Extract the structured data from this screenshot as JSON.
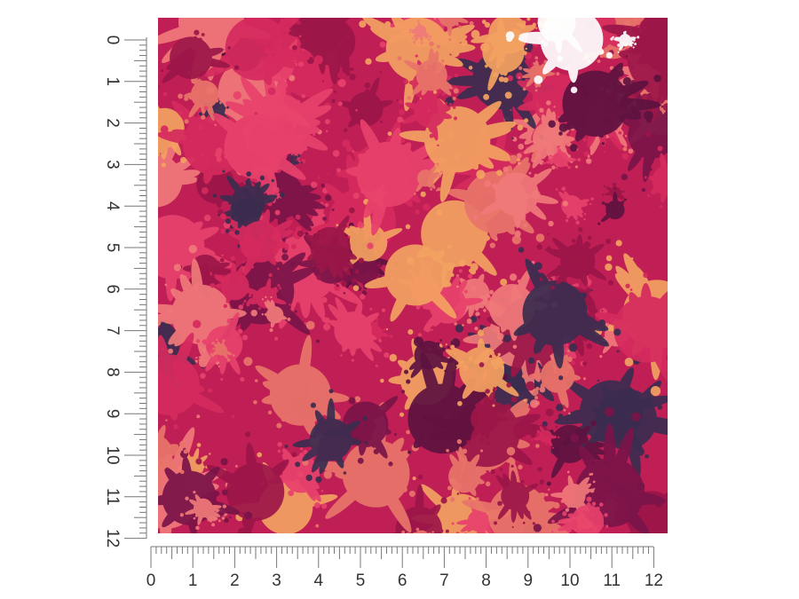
{
  "left_ruler": {
    "labels": [
      0,
      1,
      2,
      3,
      4,
      5,
      6,
      7,
      8,
      9,
      10,
      11,
      12
    ]
  },
  "bottom_ruler": {
    "labels": [
      0,
      1,
      2,
      3,
      4,
      5,
      6,
      7,
      8,
      9,
      10,
      11,
      12
    ]
  }
}
